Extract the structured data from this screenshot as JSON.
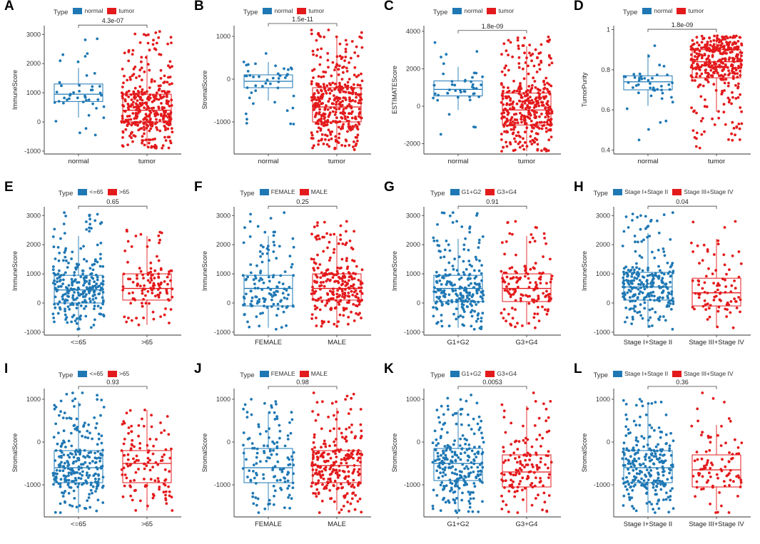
{
  "colors": {
    "blue": "#1f78b4",
    "red": "#e31a1c",
    "axis": "#333333",
    "bracket": "#444444"
  },
  "chart_data": [
    {
      "letter": "A",
      "type": "box",
      "title": "",
      "legend_title": "Type",
      "ylabel": "ImmuneScore",
      "ylim": [
        -1100,
        3300
      ],
      "yticks": [
        -1000,
        0,
        1000,
        2000,
        3000
      ],
      "pvalue": "4.3e-07",
      "groups": [
        {
          "name": "normal",
          "color": "blue",
          "median": 950,
          "q1": 700,
          "q3": 1300,
          "whisker_low": 150,
          "whisker_high": 1850,
          "n": 45,
          "points_min": -450,
          "points_max": 2850
        },
        {
          "name": "tumor",
          "color": "red",
          "median": 400,
          "q1": 0,
          "q3": 950,
          "whisker_low": -850,
          "whisker_high": 2300,
          "n": 380,
          "points_min": -900,
          "points_max": 3100
        }
      ]
    },
    {
      "letter": "B",
      "type": "box",
      "title": "",
      "legend_title": "Type",
      "ylabel": "StromalScore",
      "ylim": [
        -1750,
        1250
      ],
      "yticks": [
        -1000,
        0,
        1000
      ],
      "pvalue": "1.5e-11",
      "groups": [
        {
          "name": "normal",
          "color": "blue",
          "median": -50,
          "q1": -200,
          "q3": 100,
          "whisker_low": -500,
          "whisker_high": 400,
          "n": 45,
          "points_min": -1050,
          "points_max": 600
        },
        {
          "name": "tumor",
          "color": "red",
          "median": -650,
          "q1": -1000,
          "q3": -200,
          "whisker_low": -1650,
          "whisker_high": 1000,
          "n": 380,
          "points_min": -1650,
          "points_max": 1150
        }
      ]
    },
    {
      "letter": "C",
      "type": "box",
      "title": "",
      "legend_title": "Type",
      "ylabel": "ESTIMATEScore",
      "ylim": [
        -2550,
        4300
      ],
      "yticks": [
        -2000,
        0,
        2000,
        4000
      ],
      "pvalue": "1.8e-09",
      "groups": [
        {
          "name": "normal",
          "color": "blue",
          "median": 900,
          "q1": 550,
          "q3": 1350,
          "whisker_low": -200,
          "whisker_high": 2100,
          "n": 45,
          "points_min": -1500,
          "points_max": 3400
        },
        {
          "name": "tumor",
          "color": "red",
          "median": -200,
          "q1": -1000,
          "q3": 700,
          "whisker_low": -2400,
          "whisker_high": 3200,
          "n": 380,
          "points_min": -2400,
          "points_max": 3700
        }
      ]
    },
    {
      "letter": "D",
      "type": "box",
      "title": "",
      "legend_title": "Type",
      "ylabel": "TumorPurity",
      "ylim": [
        0.38,
        1.02
      ],
      "yticks": [
        0.4,
        0.6,
        0.8,
        1.0
      ],
      "pvalue": "1.8e-09",
      "groups": [
        {
          "name": "normal",
          "color": "blue",
          "median": 0.74,
          "q1": 0.7,
          "q3": 0.77,
          "whisker_low": 0.62,
          "whisker_high": 0.88,
          "n": 45,
          "points_min": 0.45,
          "points_max": 0.92
        },
        {
          "name": "tumor",
          "color": "red",
          "median": 0.84,
          "q1": 0.76,
          "q3": 0.9,
          "whisker_low": 0.59,
          "whisker_high": 0.97,
          "n": 380,
          "points_min": 0.41,
          "points_max": 0.97
        }
      ]
    },
    {
      "letter": "E",
      "type": "box",
      "title": "",
      "legend_title": "Type",
      "ylabel": "ImmuneScore",
      "ylim": [
        -1100,
        3300
      ],
      "yticks": [
        -1000,
        0,
        1000,
        2000,
        3000
      ],
      "pvalue": "0.65",
      "groups": [
        {
          "name": "<=65",
          "color": "blue",
          "median": 450,
          "q1": 0,
          "q3": 950,
          "whisker_low": -850,
          "whisker_high": 2300,
          "n": 260,
          "points_min": -900,
          "points_max": 3100
        },
        {
          "name": ">65",
          "color": "red",
          "median": 500,
          "q1": 100,
          "q3": 1000,
          "whisker_low": -750,
          "whisker_high": 2300,
          "n": 120,
          "points_min": -750,
          "points_max": 2500
        }
      ]
    },
    {
      "letter": "F",
      "type": "box",
      "title": "",
      "legend_title": "Type",
      "ylabel": "ImmuneScore",
      "ylim": [
        -1100,
        3300
      ],
      "yticks": [
        -1000,
        0,
        1000,
        2000,
        3000
      ],
      "pvalue": "0.25",
      "groups": [
        {
          "name": "FEMALE",
          "color": "blue",
          "median": 500,
          "q1": -100,
          "q3": 950,
          "whisker_low": -850,
          "whisker_high": 2300,
          "n": 130,
          "points_min": -900,
          "points_max": 3100
        },
        {
          "name": "MALE",
          "color": "red",
          "median": 500,
          "q1": 100,
          "q3": 1000,
          "whisker_low": -750,
          "whisker_high": 2300,
          "n": 250,
          "points_min": -800,
          "points_max": 2800
        }
      ]
    },
    {
      "letter": "G",
      "type": "box",
      "title": "",
      "legend_title": "Type",
      "ylabel": "ImmuneScore",
      "ylim": [
        -1100,
        3300
      ],
      "yticks": [
        -1000,
        0,
        1000,
        2000,
        3000
      ],
      "pvalue": "0.91",
      "groups": [
        {
          "name": "G1+G2",
          "color": "blue",
          "median": 500,
          "q1": 50,
          "q3": 950,
          "whisker_low": -850,
          "whisker_high": 2200,
          "n": 240,
          "points_min": -900,
          "points_max": 3100
        },
        {
          "name": "G3+G4",
          "color": "red",
          "median": 500,
          "q1": 50,
          "q3": 1000,
          "whisker_low": -750,
          "whisker_high": 2300,
          "n": 140,
          "points_min": -850,
          "points_max": 2800
        }
      ]
    },
    {
      "letter": "H",
      "type": "box",
      "title": "",
      "legend_title": "Type",
      "ylabel": "ImmuneScore",
      "ylim": [
        -1100,
        3300
      ],
      "yticks": [
        -1000,
        0,
        1000,
        2000,
        3000
      ],
      "pvalue": "0.04",
      "groups": [
        {
          "name": "Stage I+Stage II",
          "color": "blue",
          "median": 550,
          "q1": 100,
          "q3": 1050,
          "whisker_low": -850,
          "whisker_high": 2400,
          "n": 250,
          "points_min": -900,
          "points_max": 3100
        },
        {
          "name": "Stage III+Stage IV",
          "color": "red",
          "median": 350,
          "q1": -100,
          "q3": 850,
          "whisker_low": -850,
          "whisker_high": 2200,
          "n": 90,
          "points_min": -850,
          "points_max": 2800
        }
      ]
    },
    {
      "letter": "I",
      "type": "box",
      "title": "",
      "legend_title": "Type",
      "ylabel": "StromalScore",
      "ylim": [
        -1750,
        1250
      ],
      "yticks": [
        -1000,
        0,
        1000
      ],
      "pvalue": "0.93",
      "groups": [
        {
          "name": "<=65",
          "color": "blue",
          "median": -600,
          "q1": -950,
          "q3": -200,
          "whisker_low": -1650,
          "whisker_high": 950,
          "n": 260,
          "points_min": -1650,
          "points_max": 1150
        },
        {
          "name": ">65",
          "color": "red",
          "median": -500,
          "q1": -950,
          "q3": -200,
          "whisker_low": -1600,
          "whisker_high": 750,
          "n": 120,
          "points_min": -1600,
          "points_max": 750
        }
      ]
    },
    {
      "letter": "J",
      "type": "box",
      "title": "",
      "legend_title": "Type",
      "ylabel": "StromalScore",
      "ylim": [
        -1750,
        1250
      ],
      "yticks": [
        -1000,
        0,
        1000
      ],
      "pvalue": "0.98",
      "groups": [
        {
          "name": "FEMALE",
          "color": "blue",
          "median": -600,
          "q1": -950,
          "q3": -150,
          "whisker_low": -1600,
          "whisker_high": 700,
          "n": 130,
          "points_min": -1650,
          "points_max": 1000
        },
        {
          "name": "MALE",
          "color": "red",
          "median": -550,
          "q1": -950,
          "q3": -200,
          "whisker_low": -1600,
          "whisker_high": 800,
          "n": 250,
          "points_min": -1650,
          "points_max": 1150
        }
      ]
    },
    {
      "letter": "K",
      "type": "box",
      "title": "",
      "legend_title": "Type",
      "ylabel": "StromalScore",
      "ylim": [
        -1750,
        1250
      ],
      "yticks": [
        -1000,
        0,
        1000
      ],
      "pvalue": "0.0053",
      "groups": [
        {
          "name": "G1+G2",
          "color": "blue",
          "median": -500,
          "q1": -900,
          "q3": -150,
          "whisker_low": -1600,
          "whisker_high": 750,
          "n": 240,
          "points_min": -1650,
          "points_max": 1100
        },
        {
          "name": "G3+G4",
          "color": "red",
          "median": -700,
          "q1": -1050,
          "q3": -300,
          "whisker_low": -1650,
          "whisker_high": 850,
          "n": 140,
          "points_min": -1650,
          "points_max": 1150
        }
      ]
    },
    {
      "letter": "L",
      "type": "box",
      "title": "",
      "legend_title": "Type",
      "ylabel": "StromalScore",
      "ylim": [
        -1750,
        1250
      ],
      "yticks": [
        -1000,
        0,
        1000
      ],
      "pvalue": "0.36",
      "groups": [
        {
          "name": "Stage I+Stage II",
          "color": "blue",
          "median": -600,
          "q1": -950,
          "q3": -200,
          "whisker_low": -1650,
          "whisker_high": 900,
          "n": 250,
          "points_min": -1650,
          "points_max": 1000
        },
        {
          "name": "Stage III+Stage IV",
          "color": "red",
          "median": -650,
          "q1": -1050,
          "q3": -300,
          "whisker_low": -1600,
          "whisker_high": 400,
          "n": 90,
          "points_min": -1650,
          "points_max": 1150
        }
      ]
    }
  ]
}
